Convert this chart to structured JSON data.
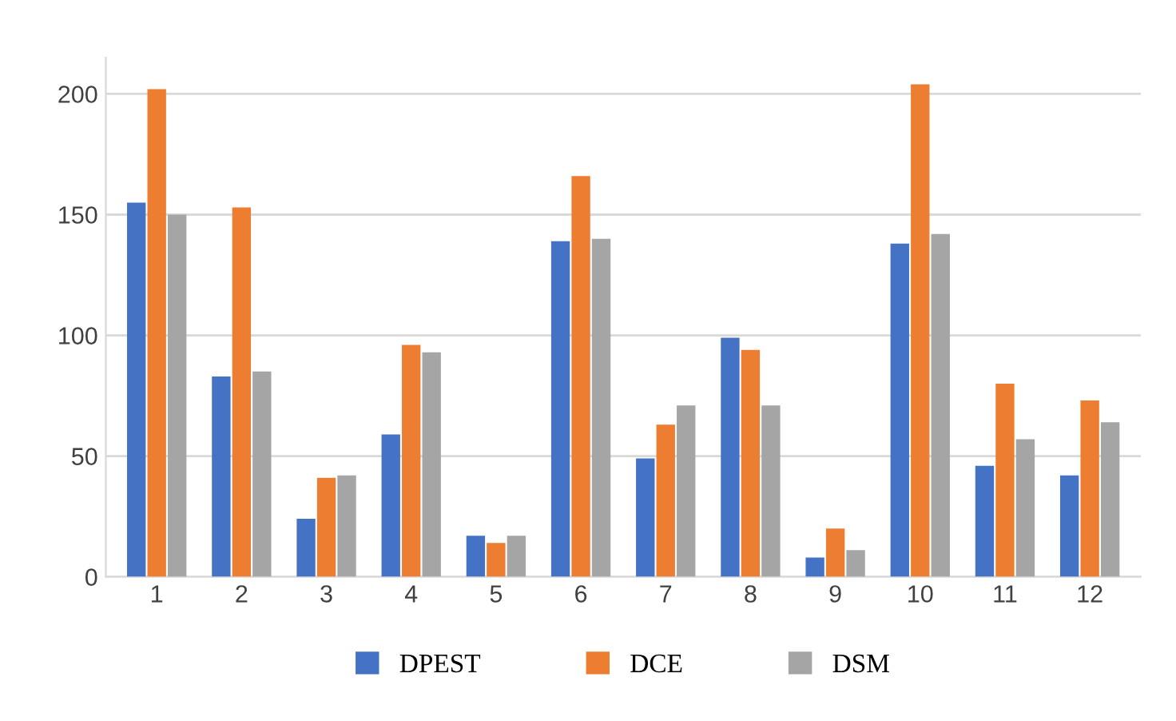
{
  "chart_data": {
    "type": "bar",
    "categories": [
      "1",
      "2",
      "3",
      "4",
      "5",
      "6",
      "7",
      "8",
      "9",
      "10",
      "11",
      "12"
    ],
    "series": [
      {
        "name": "DPEST",
        "color": "#4472c4",
        "values": [
          155,
          83,
          24,
          59,
          17,
          139,
          49,
          99,
          8,
          138,
          46,
          42
        ]
      },
      {
        "name": "DCE",
        "color": "#ed7d31",
        "values": [
          202,
          153,
          41,
          96,
          14,
          166,
          63,
          94,
          20,
          204,
          80,
          73
        ]
      },
      {
        "name": "DSM",
        "color": "#a5a5a5",
        "values": [
          150,
          85,
          42,
          93,
          17,
          140,
          71,
          71,
          11,
          142,
          57,
          64
        ]
      }
    ],
    "ylim": [
      0,
      215
    ],
    "yticks": [
      0,
      50,
      100,
      150,
      200
    ],
    "grid": "y",
    "legend": "bottom"
  }
}
